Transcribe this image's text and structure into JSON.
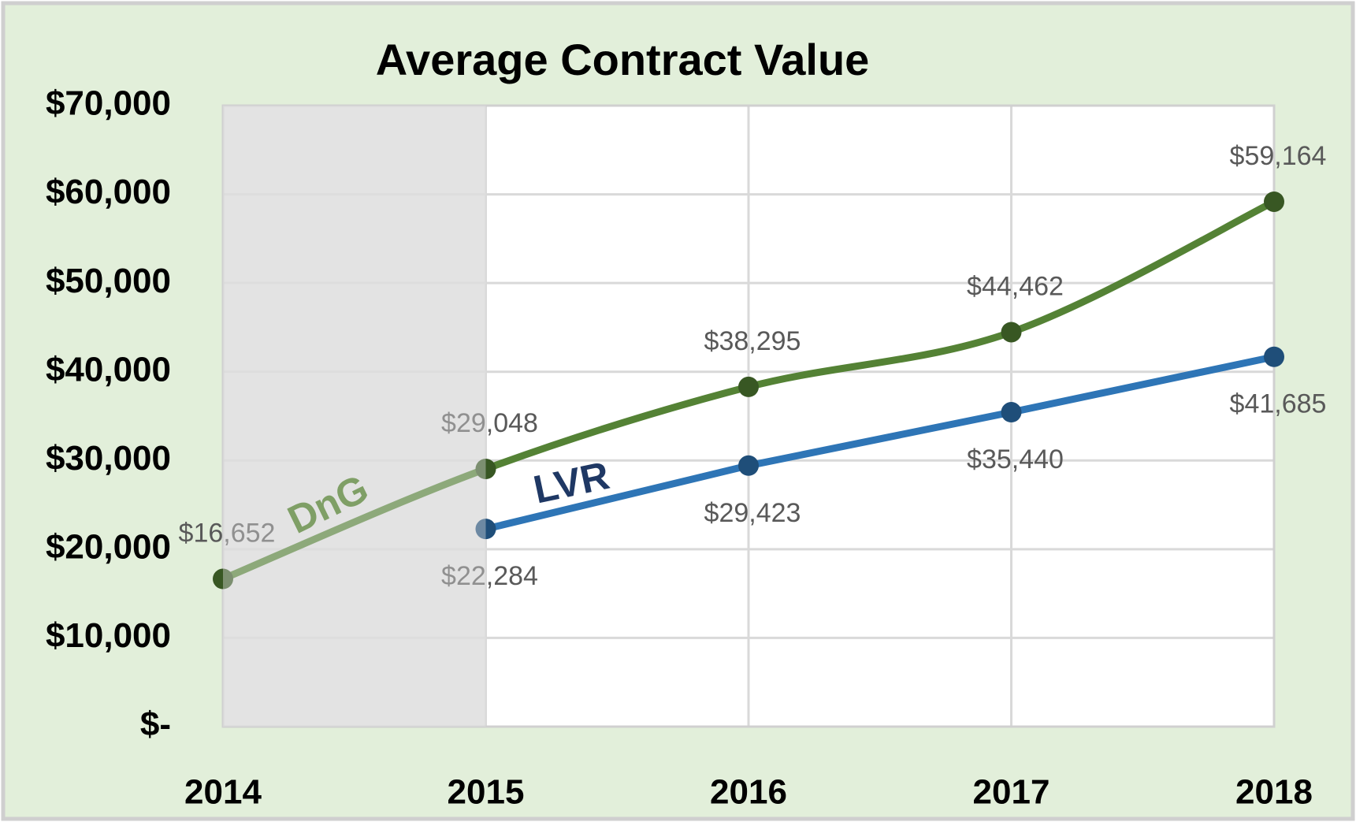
{
  "chart_data": {
    "type": "line",
    "title": "Average Contract Value",
    "categories": [
      "2014",
      "2015",
      "2016",
      "2017",
      "2018"
    ],
    "series": [
      {
        "name": "DnG",
        "color": "#548235",
        "marker_color": "#385723",
        "smooth": true,
        "label_position": "above",
        "values": [
          16652,
          29048,
          38295,
          44462,
          59164
        ],
        "value_labels": [
          "$16,652",
          "$29,048",
          "$38,295",
          "$44,462",
          "$59,164"
        ]
      },
      {
        "name": "LVR",
        "color": "#2e75b6",
        "marker_color": "#1f4e79",
        "smooth": false,
        "label_position": "below",
        "values": [
          null,
          22284,
          29423,
          35440,
          41685
        ],
        "value_labels": [
          null,
          "$22,284",
          "$29,423",
          "$35,440",
          "$41,685"
        ]
      }
    ],
    "ylim": [
      0,
      70000
    ],
    "yticks": [
      {
        "value": 0,
        "label": "$-"
      },
      {
        "value": 10000,
        "label": "$10,000"
      },
      {
        "value": 20000,
        "label": "$20,000"
      },
      {
        "value": 30000,
        "label": "$30,000"
      },
      {
        "value": 40000,
        "label": "$40,000"
      },
      {
        "value": 50000,
        "label": "$50,000"
      },
      {
        "value": 60000,
        "label": "$60,000"
      },
      {
        "value": 70000,
        "label": "$70,000"
      }
    ],
    "grid": true
  }
}
